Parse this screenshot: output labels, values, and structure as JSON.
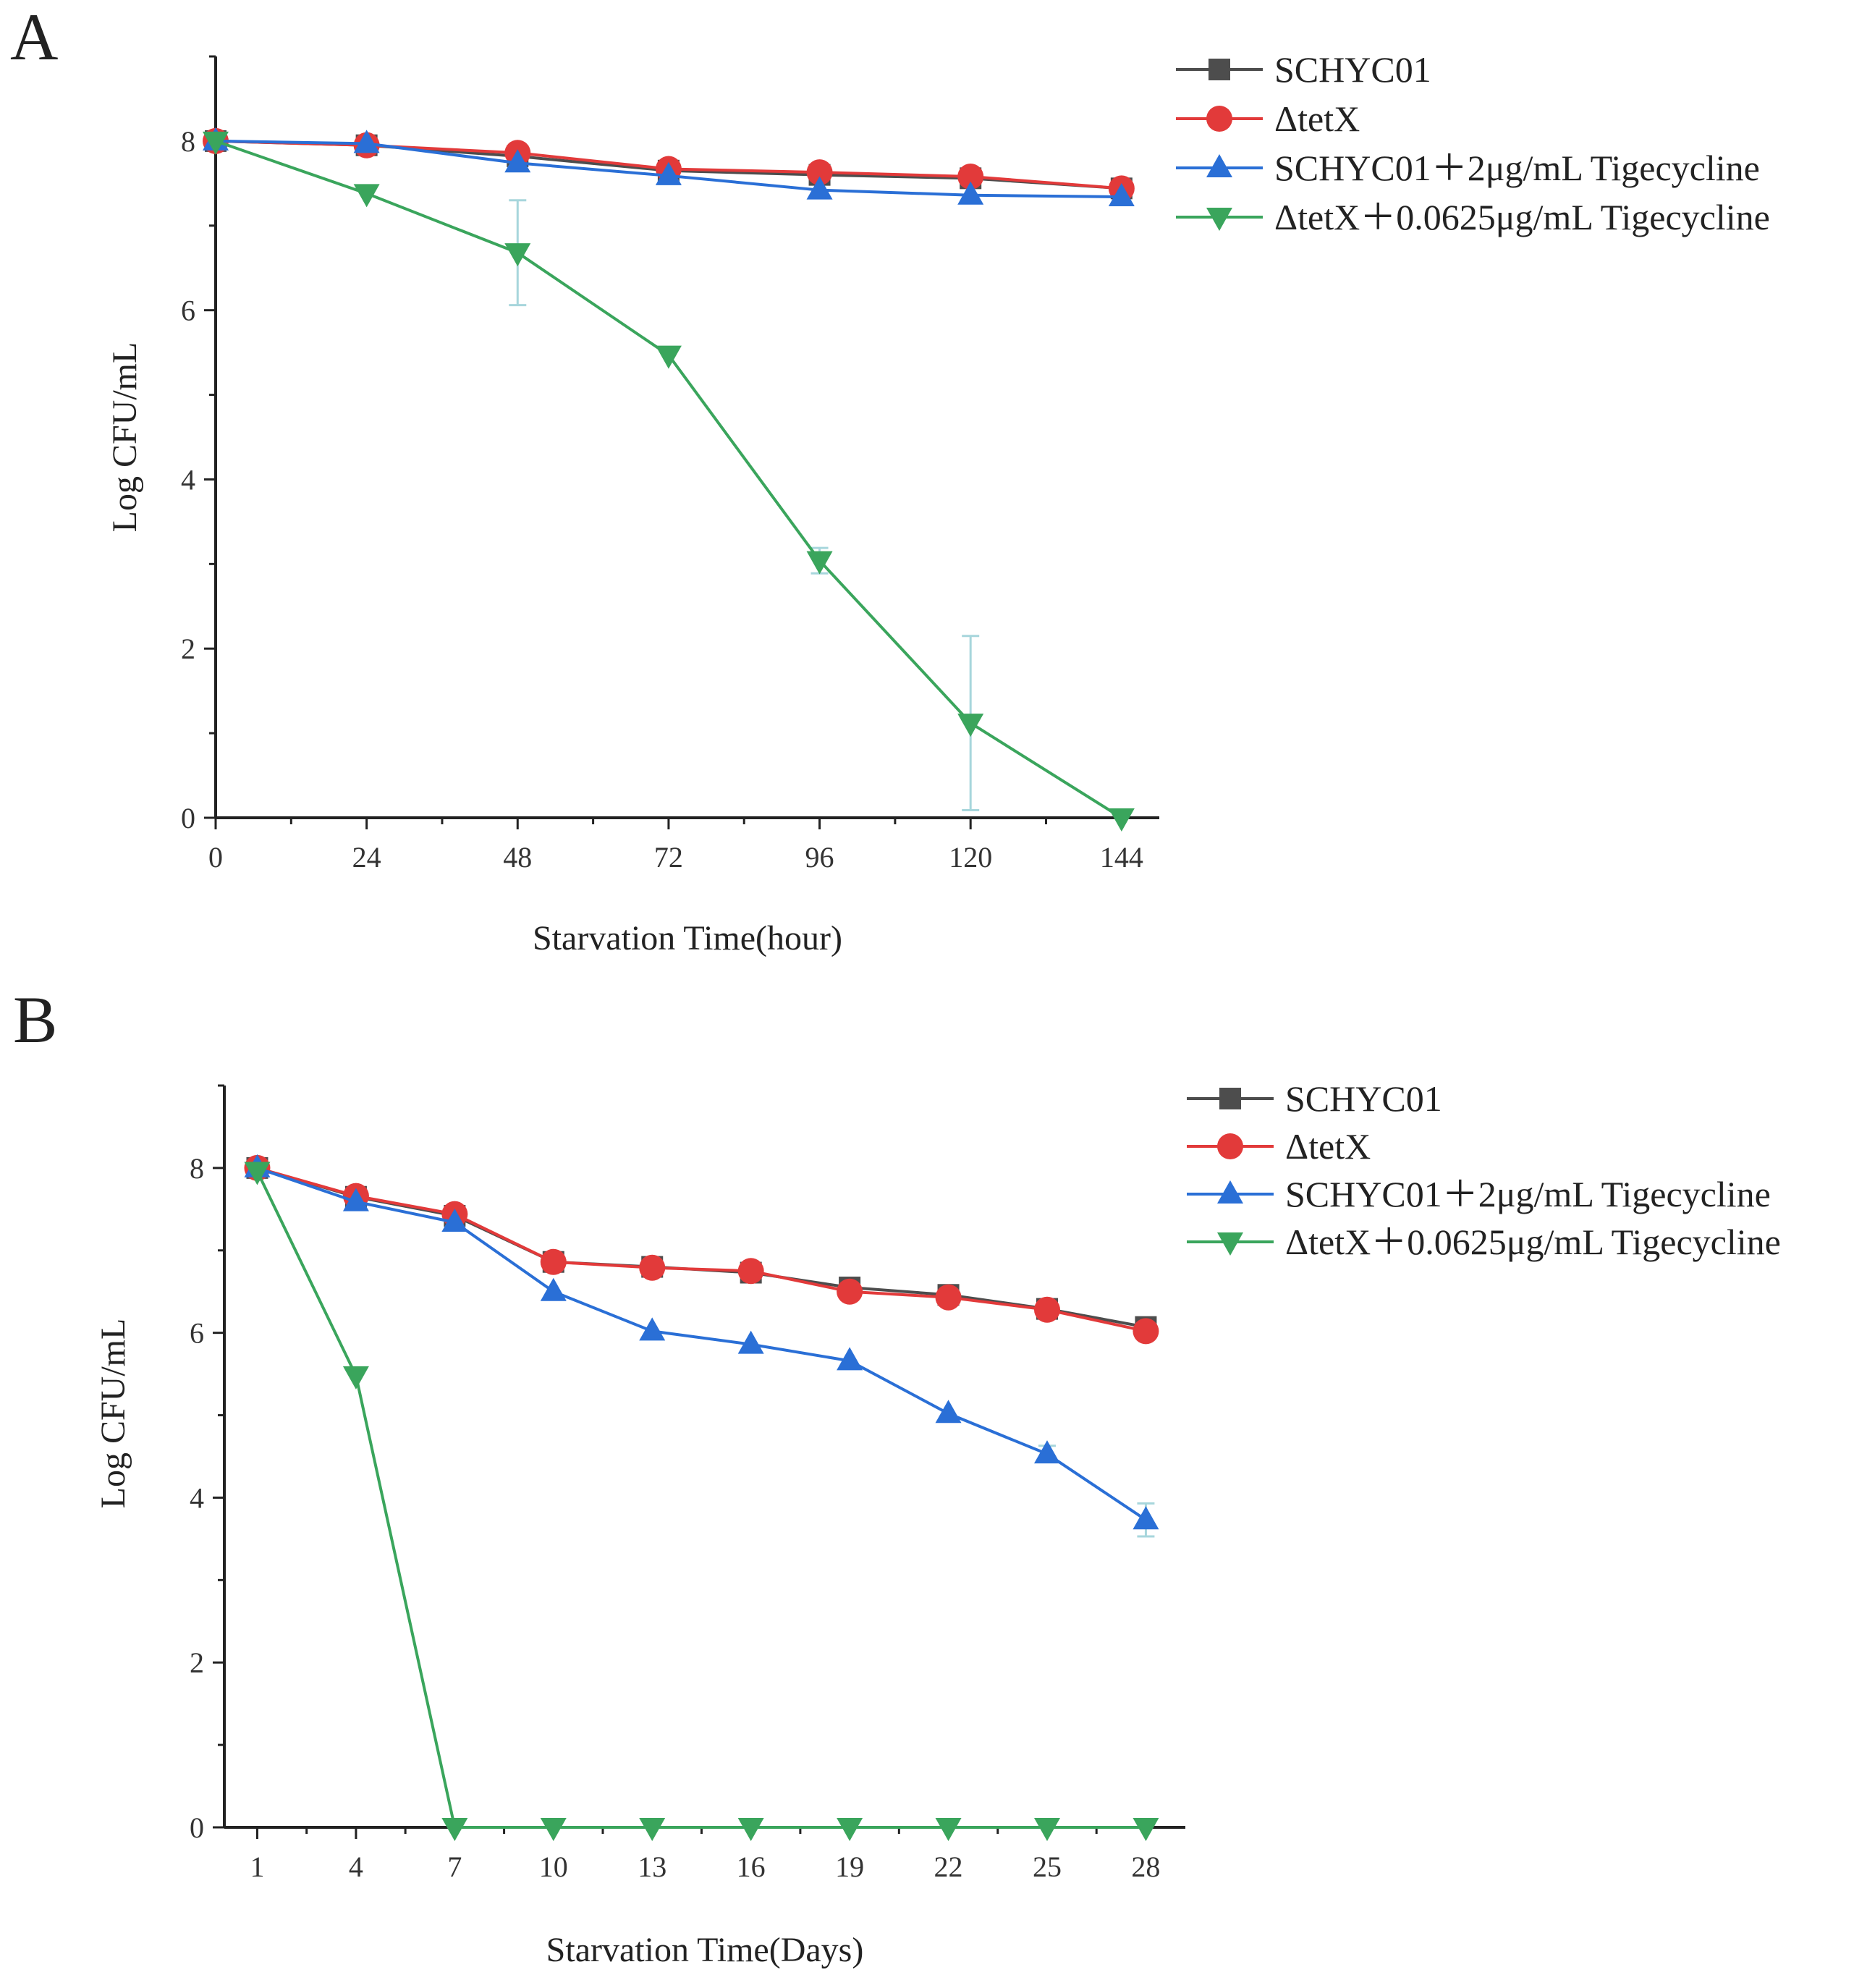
{
  "chart_data": [
    {
      "panel": "A",
      "type": "line",
      "xlabel": "Starvation Time(hour)",
      "ylabel": "Log CFU/mL",
      "xlim": [
        0,
        150
      ],
      "ylim": [
        0,
        9
      ],
      "x_ticks": [
        0,
        24,
        48,
        72,
        96,
        120,
        144
      ],
      "x_tick_labels": [
        "0",
        "24",
        "48",
        "72",
        "96",
        "120",
        "144"
      ],
      "y_ticks": [
        0,
        2,
        4,
        6,
        8
      ],
      "y_tick_labels": [
        "0",
        "2",
        "4",
        "6",
        "8"
      ],
      "legend_position": "top-right",
      "series": [
        {
          "name": "SCHYC01",
          "color": "#4d4d4d",
          "marker": "square",
          "x": [
            0,
            24,
            48,
            72,
            96,
            120,
            144
          ],
          "y": [
            8.0,
            7.95,
            7.82,
            7.65,
            7.6,
            7.56,
            7.44
          ]
        },
        {
          "name": "ΔtetX",
          "color": "#e23a3a",
          "marker": "circle",
          "x": [
            0,
            24,
            48,
            72,
            96,
            120,
            144
          ],
          "y": [
            8.0,
            7.95,
            7.86,
            7.67,
            7.63,
            7.58,
            7.44
          ]
        },
        {
          "name": "SCHYC01＋2μg/mL Tigecycline",
          "color": "#2a6fd6",
          "marker": "triangle-up",
          "x": [
            0,
            24,
            48,
            72,
            96,
            120,
            144
          ],
          "y": [
            8.0,
            7.97,
            7.74,
            7.59,
            7.42,
            7.36,
            7.34
          ]
        },
        {
          "name": "ΔtetX＋0.0625μg/mL Tigecycline",
          "color": "#3aa55c",
          "marker": "triangle-down",
          "x": [
            0,
            24,
            48,
            72,
            96,
            120,
            144
          ],
          "y": [
            8.0,
            7.38,
            6.68,
            5.47,
            3.04,
            1.12,
            0.0
          ],
          "error": [
            0,
            0,
            0.62,
            0,
            0.15,
            1.03,
            0
          ]
        }
      ]
    },
    {
      "panel": "B",
      "type": "line",
      "xlabel": "Starvation Time(Days)",
      "ylabel": "Log CFU/mL",
      "xlim": [
        0,
        29.2
      ],
      "ylim": [
        0,
        9
      ],
      "x_ticks": [
        1,
        4,
        7,
        10,
        13,
        16,
        19,
        22,
        25,
        28
      ],
      "x_tick_labels": [
        "1",
        "4",
        "7",
        "10",
        "13",
        "16",
        "19",
        "22",
        "25",
        "28"
      ],
      "y_ticks": [
        0,
        2,
        4,
        6,
        8
      ],
      "y_tick_labels": [
        "0",
        "2",
        "4",
        "6",
        "8"
      ],
      "legend_position": "top-right",
      "series": [
        {
          "name": "SCHYC01",
          "color": "#4d4d4d",
          "marker": "square",
          "x": [
            1,
            4,
            7,
            10,
            13,
            16,
            19,
            22,
            25,
            28
          ],
          "y": [
            8.0,
            7.65,
            7.42,
            6.86,
            6.8,
            6.73,
            6.55,
            6.46,
            6.29,
            6.07
          ]
        },
        {
          "name": "ΔtetX",
          "color": "#e23a3a",
          "marker": "circle",
          "x": [
            1,
            4,
            7,
            10,
            13,
            16,
            19,
            22,
            25,
            28
          ],
          "y": [
            8.0,
            7.66,
            7.44,
            6.86,
            6.79,
            6.75,
            6.5,
            6.43,
            6.28,
            6.02
          ]
        },
        {
          "name": "SCHYC01＋2μg/mL Tigecycline",
          "color": "#2a6fd6",
          "marker": "triangle-up",
          "x": [
            1,
            4,
            7,
            10,
            13,
            16,
            19,
            22,
            25,
            28
          ],
          "y": [
            8.0,
            7.59,
            7.34,
            6.5,
            6.02,
            5.86,
            5.66,
            5.02,
            4.53,
            3.73
          ],
          "error": [
            0,
            0,
            0,
            0,
            0,
            0,
            0,
            0,
            0.1,
            0.2
          ]
        },
        {
          "name": "ΔtetX＋0.0625μg/mL Tigecycline",
          "color": "#3aa55c",
          "marker": "triangle-down",
          "x": [
            1,
            4,
            7,
            10,
            13,
            16,
            19,
            22,
            25,
            28
          ],
          "y": [
            7.96,
            5.48,
            0.0,
            0.0,
            0.0,
            0.0,
            0.0,
            0.0,
            0.0,
            0.0
          ]
        }
      ]
    }
  ]
}
